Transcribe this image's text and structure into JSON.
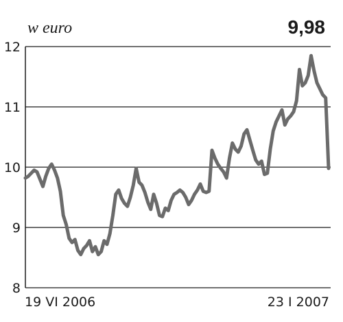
{
  "chart_data": {
    "type": "line",
    "unit_label": "w euro",
    "last_value_label": "9,98",
    "y_ticks": [
      "8",
      "9",
      "10",
      "11",
      "12"
    ],
    "ylim": [
      8,
      12
    ],
    "x_start_label": "19 VI 2006",
    "x_end_label": "23 I 2007",
    "grid": true,
    "line_color": "#6b6b6b",
    "grid_color": "#1a1a1a",
    "series": [
      {
        "values": [
          9.82,
          9.85,
          9.9,
          9.95,
          9.92,
          9.8,
          9.68,
          9.85,
          9.98,
          10.05,
          9.95,
          9.82,
          9.6,
          9.2,
          9.05,
          8.82,
          8.75,
          8.8,
          8.62,
          8.55,
          8.65,
          8.7,
          8.78,
          8.6,
          8.68,
          8.55,
          8.6,
          8.78,
          8.72,
          8.9,
          9.2,
          9.55,
          9.62,
          9.48,
          9.4,
          9.35,
          9.5,
          9.7,
          9.98,
          9.75,
          9.7,
          9.58,
          9.42,
          9.3,
          9.55,
          9.4,
          9.2,
          9.18,
          9.32,
          9.28,
          9.45,
          9.55,
          9.58,
          9.62,
          9.58,
          9.5,
          9.38,
          9.45,
          9.55,
          9.62,
          9.72,
          9.6,
          9.58,
          9.6,
          10.28,
          10.15,
          10.05,
          9.98,
          9.92,
          9.82,
          10.15,
          10.4,
          10.3,
          10.25,
          10.35,
          10.55,
          10.62,
          10.45,
          10.28,
          10.12,
          10.05,
          10.1,
          9.88,
          9.9,
          10.3,
          10.6,
          10.75,
          10.85,
          10.95,
          10.7,
          10.8,
          10.85,
          10.92,
          11.1,
          11.62,
          11.35,
          11.4,
          11.52,
          11.85,
          11.6,
          11.4,
          11.3,
          11.2,
          11.15,
          9.98
        ]
      }
    ]
  }
}
